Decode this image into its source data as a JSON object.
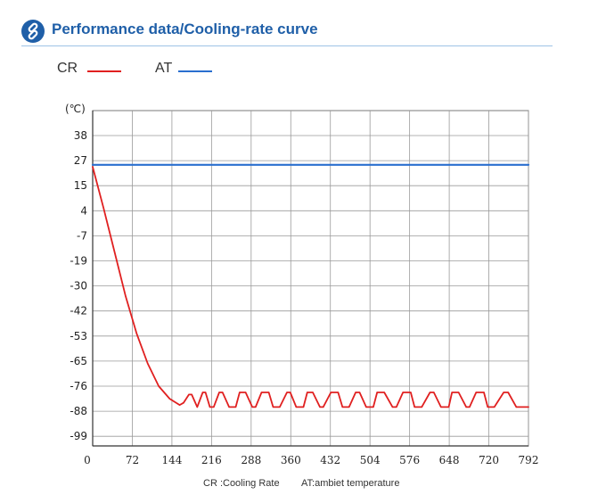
{
  "header": {
    "title": "Performance data/Cooling-rate curve",
    "icon": "link-icon",
    "accent_color": "#1f5fa8"
  },
  "legend": [
    {
      "label": "CR",
      "color": "#e02020"
    },
    {
      "label": "AT",
      "color": "#2a6fcf"
    }
  ],
  "chart_data": {
    "type": "line",
    "unit_label": "(℃)",
    "x_ticks": [
      "0",
      "72",
      "144",
      "216",
      "288",
      "360",
      "432",
      "504",
      "576",
      "648",
      "720",
      "792"
    ],
    "y_ticks": [
      "38",
      "27",
      "15",
      "4",
      "-7",
      "-19",
      "-30",
      "-42",
      "-53",
      "-65",
      "-76",
      "-88",
      "-99"
    ],
    "xlim": [
      0,
      792
    ],
    "ylim": [
      -99,
      38
    ],
    "grid": true,
    "legend_position": "top-left",
    "series": [
      {
        "name": "CR",
        "color": "#e02020",
        "x": [
          0,
          20,
          40,
          60,
          80,
          100,
          120,
          140,
          158,
          165,
          175,
          180,
          190,
          200,
          205,
          213,
          220,
          230,
          236,
          248,
          260,
          267,
          278,
          290,
          296,
          307,
          320,
          328,
          340,
          353,
          359,
          370,
          383,
          390,
          400,
          413,
          419,
          433,
          446,
          454,
          466,
          478,
          485,
          497,
          510,
          517,
          530,
          545,
          552,
          564,
          578,
          585,
          598,
          613,
          620,
          633,
          647,
          653,
          665,
          679,
          685,
          697,
          711,
          718,
          730,
          747,
          755,
          770,
          792
        ],
        "y": [
          24,
          5,
          -15,
          -35,
          -52,
          -66,
          -76,
          -82,
          -85,
          -84,
          -80,
          -80,
          -86,
          -79,
          -79,
          -86,
          -86,
          -79,
          -79,
          -86,
          -86,
          -79,
          -79,
          -86,
          -86,
          -79,
          -79,
          -86,
          -86,
          -79,
          -79,
          -86,
          -86,
          -79,
          -79,
          -86,
          -86,
          -79,
          -79,
          -86,
          -86,
          -79,
          -79,
          -86,
          -86,
          -79,
          -79,
          -86,
          -86,
          -79,
          -79,
          -86,
          -86,
          -79,
          -79,
          -86,
          -86,
          -79,
          -79,
          -86,
          -86,
          -79,
          -79,
          -86,
          -86,
          -79,
          -79,
          -86,
          -86
        ]
      },
      {
        "name": "AT",
        "color": "#2a6fcf",
        "x": [
          0,
          792
        ],
        "y": [
          25,
          25
        ]
      }
    ]
  },
  "footnotes": {
    "cr": "CR :Cooling Rate",
    "at": "AT:ambiet temperature"
  }
}
